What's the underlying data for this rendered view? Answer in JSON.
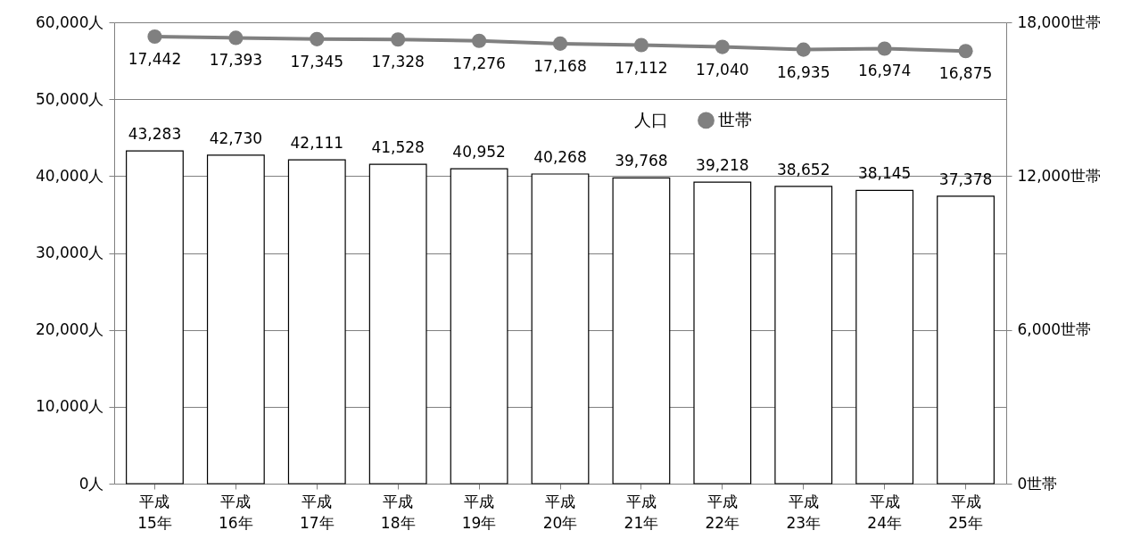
{
  "chart_data": {
    "type": "bar",
    "categories": [
      "平成\n15年",
      "平成\n16年",
      "平成\n17年",
      "平成\n18年",
      "平成\n19年",
      "平成\n20年",
      "平成\n21年",
      "平成\n22年",
      "平成\n23年",
      "平成\n24年",
      "平成\n25年"
    ],
    "series": [
      {
        "name": "人口",
        "color": "#ffffff",
        "values": [
          43283,
          42730,
          42111,
          41528,
          40952,
          40268,
          39768,
          39218,
          38652,
          38145,
          37378
        ],
        "value_labels": [
          "43,283",
          "42,730",
          "42,111",
          "41,528",
          "40,952",
          "40,268",
          "39,768",
          "39,218",
          "38,652",
          "38,145",
          "37,378"
        ]
      },
      {
        "name": "世帯",
        "type": "line",
        "axis": "y2",
        "color": "#808080",
        "values": [
          17442,
          17393,
          17345,
          17328,
          17276,
          17168,
          17112,
          17040,
          16935,
          16974,
          16875
        ],
        "value_labels": [
          "17,442",
          "17,393",
          "17,345",
          "17,328",
          "17,276",
          "17,168",
          "17,112",
          "17,040",
          "16,935",
          "16,974",
          "16,875"
        ]
      }
    ],
    "ylim": [
      0,
      60000
    ],
    "yticks": [
      {
        "value": 0,
        "label": "0人"
      },
      {
        "value": 10000,
        "label": "10,000人"
      },
      {
        "value": 20000,
        "label": "20,000人"
      },
      {
        "value": 30000,
        "label": "30,000人"
      },
      {
        "value": 40000,
        "label": "40,000人"
      },
      {
        "value": 50000,
        "label": "50,000人"
      },
      {
        "value": 60000,
        "label": "60,000人"
      }
    ],
    "y2lim": [
      0,
      18000
    ],
    "y2ticks": [
      {
        "value": 0,
        "label": "0世帯"
      },
      {
        "value": 6000,
        "label": "6,000世帯"
      },
      {
        "value": 12000,
        "label": "12,000世帯"
      },
      {
        "value": 18000,
        "label": "18,000世帯"
      }
    ],
    "grid": "y",
    "legend": "top right",
    "marker": "circle"
  }
}
